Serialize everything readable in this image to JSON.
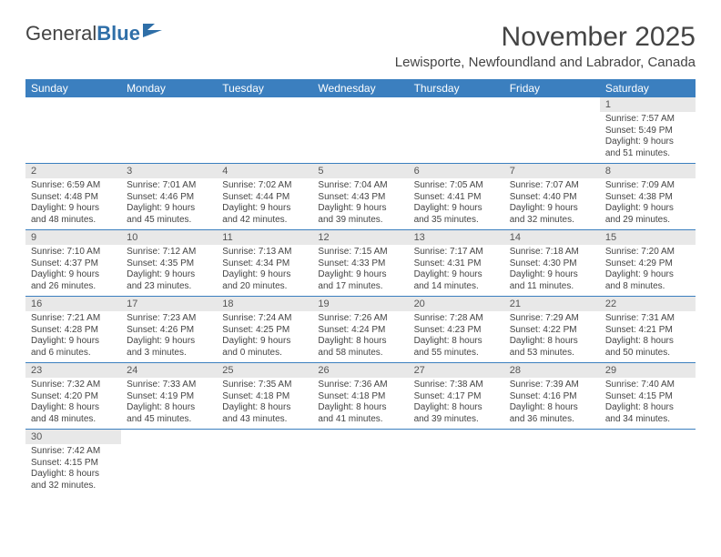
{
  "logo": {
    "part1": "General",
    "part2": "Blue"
  },
  "title": "November 2025",
  "location": "Lewisporte, Newfoundland and Labrador, Canada",
  "colors": {
    "header_bg": "#3b7fbf",
    "header_text": "#ffffff",
    "daynum_bg": "#e8e8e8",
    "rule": "#3b7fbf",
    "body_text": "#444444",
    "logo_blue": "#2f6fa8"
  },
  "typography": {
    "title_fontsize": 30,
    "location_fontsize": 15,
    "header_fontsize": 12,
    "daynum_fontsize": 11,
    "info_fontsize": 10
  },
  "columns": [
    "Sunday",
    "Monday",
    "Tuesday",
    "Wednesday",
    "Thursday",
    "Friday",
    "Saturday"
  ],
  "weeks": [
    [
      null,
      null,
      null,
      null,
      null,
      null,
      {
        "n": "1",
        "sr": "Sunrise: 7:57 AM",
        "ss": "Sunset: 5:49 PM",
        "dl": "Daylight: 9 hours and 51 minutes."
      }
    ],
    [
      {
        "n": "2",
        "sr": "Sunrise: 6:59 AM",
        "ss": "Sunset: 4:48 PM",
        "dl": "Daylight: 9 hours and 48 minutes."
      },
      {
        "n": "3",
        "sr": "Sunrise: 7:01 AM",
        "ss": "Sunset: 4:46 PM",
        "dl": "Daylight: 9 hours and 45 minutes."
      },
      {
        "n": "4",
        "sr": "Sunrise: 7:02 AM",
        "ss": "Sunset: 4:44 PM",
        "dl": "Daylight: 9 hours and 42 minutes."
      },
      {
        "n": "5",
        "sr": "Sunrise: 7:04 AM",
        "ss": "Sunset: 4:43 PM",
        "dl": "Daylight: 9 hours and 39 minutes."
      },
      {
        "n": "6",
        "sr": "Sunrise: 7:05 AM",
        "ss": "Sunset: 4:41 PM",
        "dl": "Daylight: 9 hours and 35 minutes."
      },
      {
        "n": "7",
        "sr": "Sunrise: 7:07 AM",
        "ss": "Sunset: 4:40 PM",
        "dl": "Daylight: 9 hours and 32 minutes."
      },
      {
        "n": "8",
        "sr": "Sunrise: 7:09 AM",
        "ss": "Sunset: 4:38 PM",
        "dl": "Daylight: 9 hours and 29 minutes."
      }
    ],
    [
      {
        "n": "9",
        "sr": "Sunrise: 7:10 AM",
        "ss": "Sunset: 4:37 PM",
        "dl": "Daylight: 9 hours and 26 minutes."
      },
      {
        "n": "10",
        "sr": "Sunrise: 7:12 AM",
        "ss": "Sunset: 4:35 PM",
        "dl": "Daylight: 9 hours and 23 minutes."
      },
      {
        "n": "11",
        "sr": "Sunrise: 7:13 AM",
        "ss": "Sunset: 4:34 PM",
        "dl": "Daylight: 9 hours and 20 minutes."
      },
      {
        "n": "12",
        "sr": "Sunrise: 7:15 AM",
        "ss": "Sunset: 4:33 PM",
        "dl": "Daylight: 9 hours and 17 minutes."
      },
      {
        "n": "13",
        "sr": "Sunrise: 7:17 AM",
        "ss": "Sunset: 4:31 PM",
        "dl": "Daylight: 9 hours and 14 minutes."
      },
      {
        "n": "14",
        "sr": "Sunrise: 7:18 AM",
        "ss": "Sunset: 4:30 PM",
        "dl": "Daylight: 9 hours and 11 minutes."
      },
      {
        "n": "15",
        "sr": "Sunrise: 7:20 AM",
        "ss": "Sunset: 4:29 PM",
        "dl": "Daylight: 9 hours and 8 minutes."
      }
    ],
    [
      {
        "n": "16",
        "sr": "Sunrise: 7:21 AM",
        "ss": "Sunset: 4:28 PM",
        "dl": "Daylight: 9 hours and 6 minutes."
      },
      {
        "n": "17",
        "sr": "Sunrise: 7:23 AM",
        "ss": "Sunset: 4:26 PM",
        "dl": "Daylight: 9 hours and 3 minutes."
      },
      {
        "n": "18",
        "sr": "Sunrise: 7:24 AM",
        "ss": "Sunset: 4:25 PM",
        "dl": "Daylight: 9 hours and 0 minutes."
      },
      {
        "n": "19",
        "sr": "Sunrise: 7:26 AM",
        "ss": "Sunset: 4:24 PM",
        "dl": "Daylight: 8 hours and 58 minutes."
      },
      {
        "n": "20",
        "sr": "Sunrise: 7:28 AM",
        "ss": "Sunset: 4:23 PM",
        "dl": "Daylight: 8 hours and 55 minutes."
      },
      {
        "n": "21",
        "sr": "Sunrise: 7:29 AM",
        "ss": "Sunset: 4:22 PM",
        "dl": "Daylight: 8 hours and 53 minutes."
      },
      {
        "n": "22",
        "sr": "Sunrise: 7:31 AM",
        "ss": "Sunset: 4:21 PM",
        "dl": "Daylight: 8 hours and 50 minutes."
      }
    ],
    [
      {
        "n": "23",
        "sr": "Sunrise: 7:32 AM",
        "ss": "Sunset: 4:20 PM",
        "dl": "Daylight: 8 hours and 48 minutes."
      },
      {
        "n": "24",
        "sr": "Sunrise: 7:33 AM",
        "ss": "Sunset: 4:19 PM",
        "dl": "Daylight: 8 hours and 45 minutes."
      },
      {
        "n": "25",
        "sr": "Sunrise: 7:35 AM",
        "ss": "Sunset: 4:18 PM",
        "dl": "Daylight: 8 hours and 43 minutes."
      },
      {
        "n": "26",
        "sr": "Sunrise: 7:36 AM",
        "ss": "Sunset: 4:18 PM",
        "dl": "Daylight: 8 hours and 41 minutes."
      },
      {
        "n": "27",
        "sr": "Sunrise: 7:38 AM",
        "ss": "Sunset: 4:17 PM",
        "dl": "Daylight: 8 hours and 39 minutes."
      },
      {
        "n": "28",
        "sr": "Sunrise: 7:39 AM",
        "ss": "Sunset: 4:16 PM",
        "dl": "Daylight: 8 hours and 36 minutes."
      },
      {
        "n": "29",
        "sr": "Sunrise: 7:40 AM",
        "ss": "Sunset: 4:15 PM",
        "dl": "Daylight: 8 hours and 34 minutes."
      }
    ],
    [
      {
        "n": "30",
        "sr": "Sunrise: 7:42 AM",
        "ss": "Sunset: 4:15 PM",
        "dl": "Daylight: 8 hours and 32 minutes."
      },
      null,
      null,
      null,
      null,
      null,
      null
    ]
  ]
}
